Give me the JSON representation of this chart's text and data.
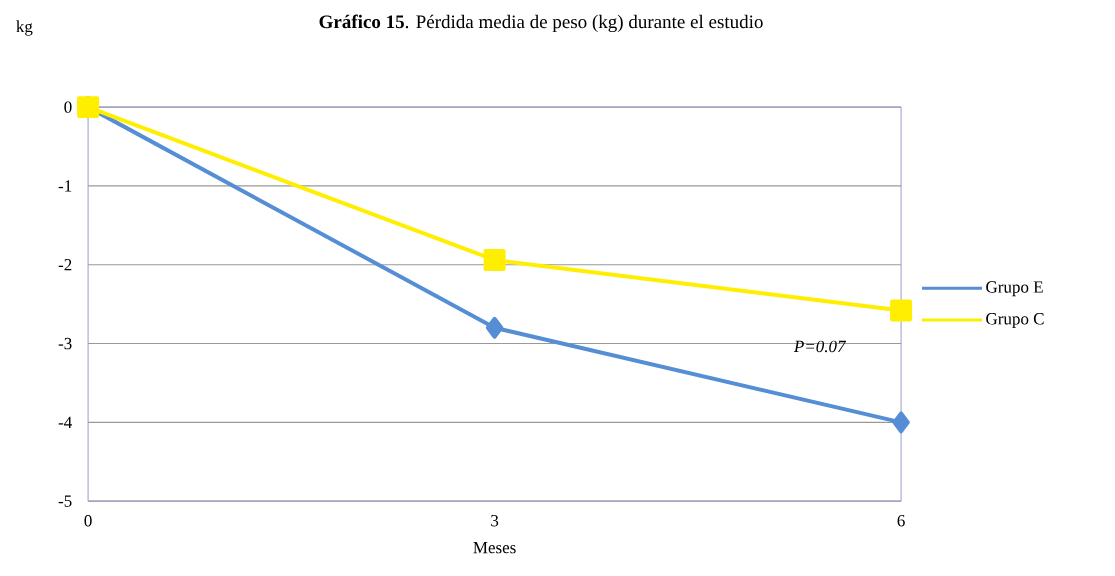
{
  "chart_data": {
    "type": "line",
    "title": "**Gráfico 15**. Pérdida media de peso (kg) durante el estudio",
    "ylabel": "kg",
    "xlabel": "Meses",
    "x": [
      0,
      3,
      6
    ],
    "series": [
      {
        "name": "Grupo E",
        "color": "#558ed5",
        "marker": "diamond",
        "values": [
          0,
          -2.8,
          -4.0
        ]
      },
      {
        "name": "Grupo C",
        "color": "#ffee00",
        "marker": "square",
        "values": [
          0,
          -1.94,
          -2.58
        ]
      }
    ],
    "xlim": [
      0,
      6
    ],
    "xticks": [
      0,
      3,
      6
    ],
    "ylim": [
      -5,
      0
    ],
    "yticks": [
      -5,
      -4,
      -3,
      -2,
      -1,
      0
    ],
    "grid": "y",
    "legend": "right",
    "line_style": "solid",
    "annotations": [
      "*P=0.07*"
    ]
  }
}
